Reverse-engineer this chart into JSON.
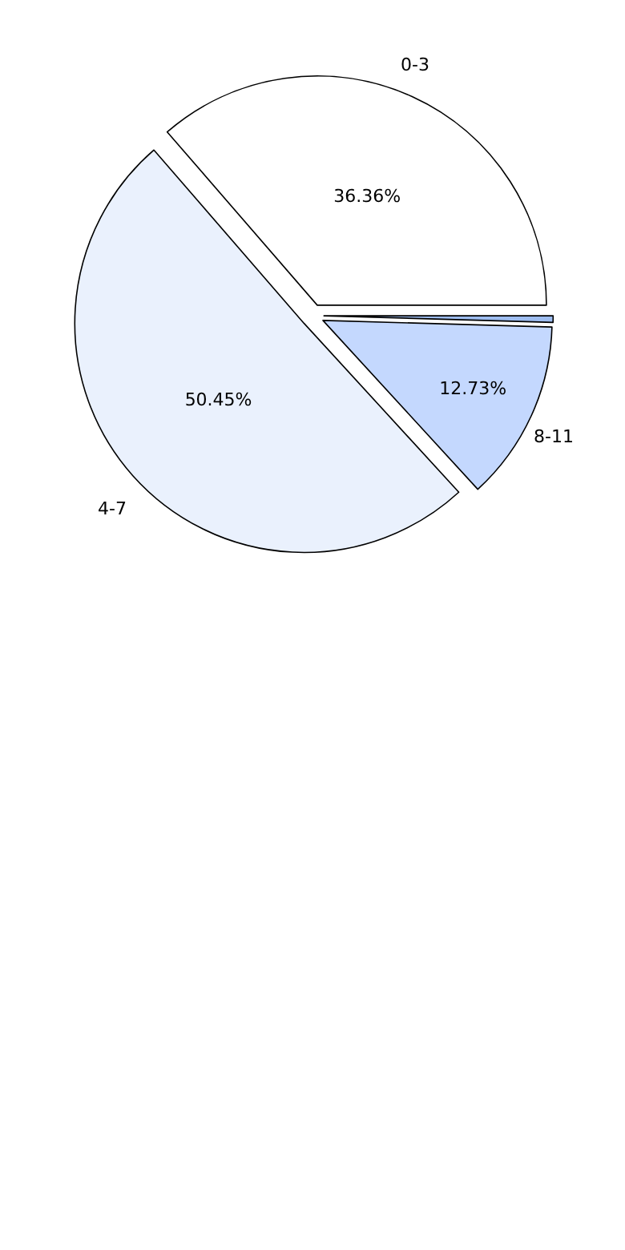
{
  "chart_data": {
    "type": "pie",
    "categories": [
      "0-3",
      "4-7",
      "8-11",
      null
    ],
    "values": [
      36.36,
      50.45,
      12.73,
      0.46
    ],
    "colors": [
      "#ffffff",
      "#eaf1fd",
      "#c4d8fe",
      "#9ebdf0"
    ],
    "value_labels": [
      "36.36%",
      "50.45%",
      "12.73%",
      null
    ]
  }
}
